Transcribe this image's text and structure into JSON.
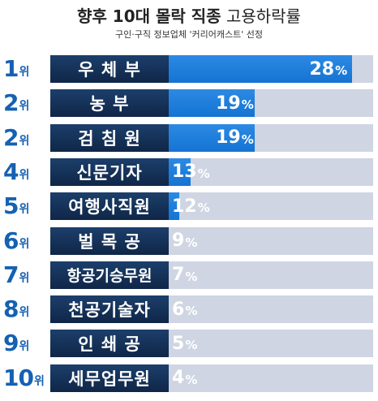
{
  "header": {
    "title_bold": "향후 10대 몰락 직종",
    "title_light": "고용하락률",
    "subtitle": "구인·구직 정보업체 '커리어캐스트' 선정"
  },
  "rank_unit": "위",
  "percent_unit": "%",
  "chart_data": {
    "type": "bar",
    "orientation": "horizontal",
    "title": "향후 10대 몰락 직종 고용하락률",
    "subtitle": "구인·구직 정보업체 '커리어캐스트' 선정",
    "unit": "%",
    "xlim": [
      0,
      30
    ],
    "ranks": [
      "1",
      "2",
      "2",
      "4",
      "5",
      "6",
      "7",
      "8",
      "9",
      "10"
    ],
    "categories": [
      "우 체 부",
      "농 부",
      "검 침 원",
      "신문기자",
      "여행사직원",
      "벌 목 공",
      "항공기승무원",
      "천공기술자",
      "인 쇄 공",
      "세무업무원"
    ],
    "values": [
      28,
      19,
      19,
      13,
      12,
      9,
      7,
      6,
      5,
      4
    ],
    "colors": {
      "bar": "#1573d3",
      "label_bg": "#0f2647",
      "track": "#cfd5e2",
      "rank": "#1561b3"
    }
  }
}
